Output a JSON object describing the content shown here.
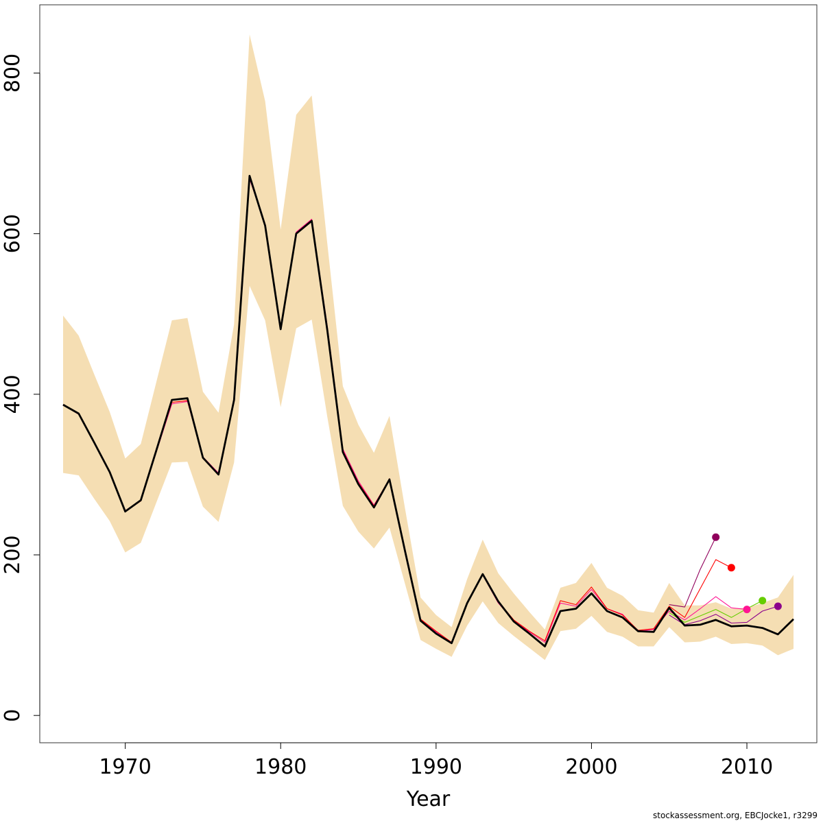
{
  "chart_data": {
    "type": "line",
    "title": "",
    "xlabel": "Year",
    "ylabel": "",
    "xlim": [
      1964.5,
      2014.5
    ],
    "ylim": [
      -34,
      885
    ],
    "xticks": [
      1970,
      1980,
      1990,
      2000,
      2010
    ],
    "yticks": [
      0,
      200,
      400,
      600,
      800
    ],
    "grid": false,
    "legend": "none",
    "band": {
      "color": "#f5deb3",
      "x": [
        1966,
        1967,
        1968,
        1969,
        1970,
        1971,
        1972,
        1973,
        1974,
        1975,
        1976,
        1977,
        1978,
        1979,
        1980,
        1981,
        1982,
        1983,
        1984,
        1985,
        1986,
        1987,
        1988,
        1989,
        1990,
        1991,
        1992,
        1993,
        1994,
        1995,
        1996,
        1997,
        1998,
        1999,
        2000,
        2001,
        2002,
        2003,
        2004,
        2005,
        2006,
        2007,
        2008,
        2009,
        2010,
        2011,
        2012,
        2013
      ],
      "upper": [
        498,
        473,
        425,
        378,
        320,
        338,
        415,
        492,
        495,
        403,
        377,
        487,
        848,
        765,
        605,
        748,
        772,
        588,
        410,
        362,
        327,
        373,
        258,
        147,
        125,
        110,
        170,
        219,
        177,
        152,
        129,
        107,
        159,
        165,
        190,
        159,
        149,
        131,
        128,
        165,
        137,
        137,
        141,
        133,
        134,
        140,
        147,
        175
      ],
      "lower": [
        302,
        299,
        270,
        242,
        203,
        215,
        265,
        315,
        316,
        260,
        241,
        315,
        535,
        492,
        384,
        482,
        493,
        372,
        261,
        229,
        208,
        234,
        164,
        94,
        83,
        73,
        112,
        142,
        115,
        99,
        84,
        69,
        105,
        108,
        124,
        104,
        98,
        86,
        86,
        110,
        91,
        92,
        98,
        89,
        90,
        87,
        75,
        83
      ]
    },
    "series": [
      {
        "color": "#000000",
        "x": [
          1966,
          1967,
          1968,
          1969,
          1970,
          1971,
          1972,
          1973,
          1974,
          1975,
          1976,
          1977,
          1978,
          1979,
          1980,
          1981,
          1982,
          1983,
          1984,
          1985,
          1986,
          1987,
          1988,
          1989,
          1990,
          1991,
          1992,
          1993,
          1994,
          1995,
          1996,
          1997,
          1998,
          1999,
          2000,
          2001,
          2002,
          2003,
          2004,
          2005,
          2006,
          2007,
          2008,
          2009,
          2010,
          2011,
          2012,
          2013
        ],
        "values": [
          387,
          376,
          340,
          303,
          254,
          268,
          330,
          393,
          395,
          321,
          300,
          393,
          672,
          610,
          481,
          600,
          616,
          480,
          328,
          288,
          259,
          294,
          205,
          118,
          102,
          90,
          140,
          176,
          142,
          117,
          102,
          86,
          130,
          133,
          152,
          130,
          122,
          105,
          104,
          134,
          112,
          113,
          119,
          111,
          112,
          109,
          101,
          120
        ]
      },
      {
        "color": "#ff1493",
        "x": [
          1966,
          1967,
          1968,
          1969,
          1970,
          1971,
          1972,
          1973,
          1974,
          1975,
          1976,
          1977,
          1978,
          1979,
          1980,
          1981,
          1982,
          1983,
          1984,
          1985,
          1986,
          1987,
          1988,
          1989,
          1990,
          1991,
          1992,
          1993,
          1994,
          1995,
          1996,
          1997,
          1998,
          1999,
          2000,
          2001,
          2002,
          2003,
          2004,
          2005,
          2006,
          2007,
          2008,
          2009,
          2010
        ],
        "values": [
          387,
          375,
          339,
          302,
          255,
          268,
          328,
          388,
          391,
          322,
          302,
          392,
          668,
          612,
          483,
          602,
          618,
          485,
          332,
          292,
          262,
          294,
          206,
          120,
          104,
          91,
          141,
          175,
          140,
          118,
          104,
          91,
          140,
          136,
          157,
          133,
          126,
          105,
          107,
          130,
          119,
          133,
          148,
          134,
          132
        ]
      },
      {
        "color": "#66cd00",
        "x": [
          2005,
          2006,
          2007,
          2008,
          2009,
          2010,
          2011
        ],
        "values": [
          128,
          116,
          124,
          132,
          122,
          133,
          143
        ]
      },
      {
        "color": "#ff0000",
        "x": [
          1966,
          1967,
          1968,
          1969,
          1970,
          1971,
          1972,
          1973,
          1974,
          1975,
          1976,
          1977,
          1978,
          1979,
          1980,
          1981,
          1982,
          1983,
          1984,
          1985,
          1986,
          1987,
          1988,
          1989,
          1990,
          1991,
          1992,
          1993,
          1994,
          1995,
          1996,
          1997,
          1998,
          1999,
          2000,
          2001,
          2002,
          2003,
          2004,
          2005,
          2006,
          2007,
          2008,
          2009
        ],
        "values": [
          387,
          376,
          340,
          303,
          254,
          267,
          329,
          390,
          392,
          321,
          300,
          392,
          670,
          611,
          482,
          601,
          617,
          483,
          330,
          290,
          261,
          295,
          206,
          120,
          105,
          91,
          140,
          176,
          142,
          119,
          105,
          93,
          143,
          138,
          160,
          133,
          125,
          106,
          108,
          136,
          122,
          158,
          194,
          184
        ]
      },
      {
        "color": "#8b008b",
        "x": [
          2005,
          2006,
          2007,
          2008,
          2009,
          2010,
          2011,
          2012
        ],
        "values": [
          125,
          113,
          118,
          126,
          115,
          116,
          130,
          136
        ]
      },
      {
        "color": "#90005c",
        "x": [
          2005,
          2006,
          2007,
          2008
        ],
        "values": [
          138,
          135,
          182,
          222
        ]
      }
    ],
    "endpoints": [
      {
        "color": "#90005c",
        "x": 2008,
        "y": 222
      },
      {
        "color": "#ff0000",
        "x": 2009,
        "y": 184
      },
      {
        "color": "#ff1493",
        "x": 2010,
        "y": 132
      },
      {
        "color": "#66cd00",
        "x": 2011,
        "y": 143
      },
      {
        "color": "#8b008b",
        "x": 2012,
        "y": 136
      }
    ]
  },
  "footer": "stockassessment.org, EBCJocke1, r3299"
}
